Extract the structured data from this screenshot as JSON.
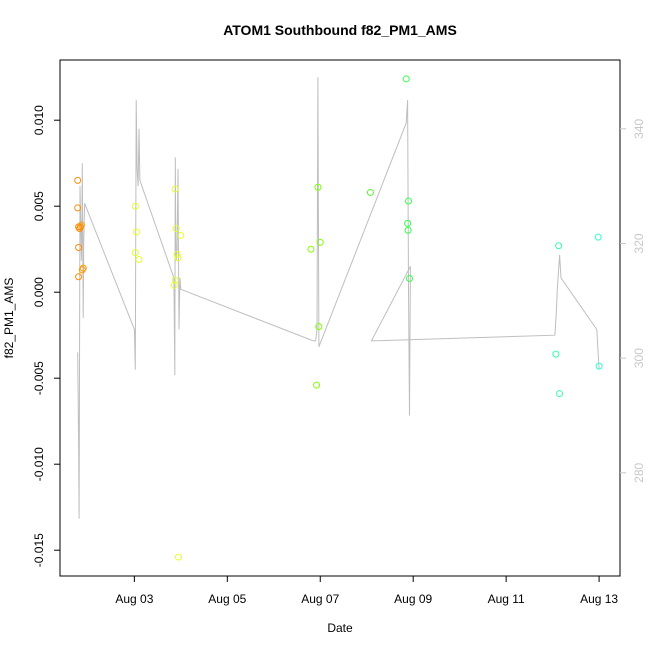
{
  "chart_data": {
    "type": "scatter",
    "title": "ATOM1 Southbound f82_PM1_AMS",
    "xlabel": "Date",
    "ylabel": "f82_PM1_AMS",
    "y2label": "",
    "x_ticks": [
      "Aug 03",
      "Aug 05",
      "Aug 07",
      "Aug 09",
      "Aug 11",
      "Aug 13"
    ],
    "x_tick_values": [
      3,
      5,
      7,
      9,
      11,
      13
    ],
    "xlim": [
      1.4,
      13.45
    ],
    "y_ticks": [
      -0.015,
      -0.01,
      -0.005,
      0.0,
      0.005,
      0.01
    ],
    "y_tick_labels": [
      "-0.015",
      "-0.010",
      "-0.005",
      "0.000",
      "0.005",
      "0.010"
    ],
    "ylim": [
      -0.0165,
      0.0135
    ],
    "y2_ticks": [
      280,
      300,
      320,
      340
    ],
    "y2lim": [
      262,
      352
    ],
    "colors": {
      "axis": "#000000",
      "secondary_axis": "#c8c8c8",
      "line": "#bebebe"
    },
    "points": [
      {
        "x": 1.78,
        "y": 0.0065,
        "color": "#ff8c00"
      },
      {
        "x": 1.78,
        "y": 0.0049,
        "color": "#ff8c00"
      },
      {
        "x": 1.8,
        "y": 0.0038,
        "color": "#ff8c00"
      },
      {
        "x": 1.82,
        "y": 0.0037,
        "color": "#ff8c00"
      },
      {
        "x": 1.84,
        "y": 0.0038,
        "color": "#ff8c00"
      },
      {
        "x": 1.86,
        "y": 0.0039,
        "color": "#ff9a00"
      },
      {
        "x": 1.8,
        "y": 0.0026,
        "color": "#ff8c00"
      },
      {
        "x": 1.9,
        "y": 0.0014,
        "color": "#ff9a00"
      },
      {
        "x": 1.88,
        "y": 0.0013,
        "color": "#ff9a00"
      },
      {
        "x": 1.8,
        "y": 0.0009,
        "color": "#ff8c00"
      },
      {
        "x": 3.02,
        "y": 0.005,
        "color": "#e5ff26"
      },
      {
        "x": 3.05,
        "y": 0.0035,
        "color": "#e5ff26"
      },
      {
        "x": 3.02,
        "y": 0.0023,
        "color": "#e5ff26"
      },
      {
        "x": 3.1,
        "y": 0.0019,
        "color": "#e5ff26"
      },
      {
        "x": 3.88,
        "y": 0.006,
        "color": "#e5ff26"
      },
      {
        "x": 3.9,
        "y": 0.0037,
        "color": "#e5ff26"
      },
      {
        "x": 3.92,
        "y": 0.0022,
        "color": "#e5ff26"
      },
      {
        "x": 3.94,
        "y": 0.002,
        "color": "#e5ff26"
      },
      {
        "x": 4.0,
        "y": 0.0033,
        "color": "#e5ff26"
      },
      {
        "x": 3.88,
        "y": 0.0007,
        "color": "#e5ff26"
      },
      {
        "x": 3.86,
        "y": 0.0004,
        "color": "#e5ff26"
      },
      {
        "x": 3.95,
        "y": -0.0154,
        "color": "#e5ff26"
      },
      {
        "x": 6.8,
        "y": 0.0025,
        "color": "#7fff00"
      },
      {
        "x": 6.95,
        "y": 0.0061,
        "color": "#7fff00"
      },
      {
        "x": 7.0,
        "y": 0.0029,
        "color": "#7fff00"
      },
      {
        "x": 6.97,
        "y": -0.002,
        "color": "#7fff00"
      },
      {
        "x": 6.92,
        "y": -0.0054,
        "color": "#7fff00"
      },
      {
        "x": 8.08,
        "y": 0.0058,
        "color": "#4eff2a"
      },
      {
        "x": 8.85,
        "y": 0.0124,
        "color": "#33ff4d"
      },
      {
        "x": 8.9,
        "y": 0.0053,
        "color": "#33ff4d"
      },
      {
        "x": 8.88,
        "y": 0.004,
        "color": "#33ff4d"
      },
      {
        "x": 8.89,
        "y": 0.0036,
        "color": "#33ff4d"
      },
      {
        "x": 8.92,
        "y": 0.0008,
        "color": "#33ff4d"
      },
      {
        "x": 12.13,
        "y": 0.0027,
        "color": "#33ffaa"
      },
      {
        "x": 12.07,
        "y": -0.0036,
        "color": "#33ffaa"
      },
      {
        "x": 12.15,
        "y": -0.0059,
        "color": "#33ffaa"
      },
      {
        "x": 12.98,
        "y": 0.0032,
        "color": "#33ffcc"
      },
      {
        "x": 13.0,
        "y": -0.0043,
        "color": "#33ffcc"
      }
    ],
    "line_y2": [
      [
        1.78,
        301
      ],
      [
        1.8,
        285
      ],
      [
        1.81,
        272
      ],
      [
        1.83,
        330
      ],
      [
        1.86,
        317
      ],
      [
        1.87,
        321
      ],
      [
        1.88,
        334
      ],
      [
        1.9,
        307
      ],
      [
        1.91,
        320
      ],
      [
        1.93,
        327
      ],
      [
        3.0,
        305
      ],
      [
        3.02,
        298
      ],
      [
        3.04,
        345
      ],
      [
        3.06,
        333
      ],
      [
        3.08,
        330
      ],
      [
        3.1,
        340
      ],
      [
        3.12,
        331
      ],
      [
        3.85,
        314
      ],
      [
        3.87,
        297
      ],
      [
        3.88,
        335
      ],
      [
        3.89,
        323
      ],
      [
        3.9,
        317
      ],
      [
        3.92,
        319
      ],
      [
        3.94,
        333
      ],
      [
        3.96,
        305
      ],
      [
        3.98,
        314
      ],
      [
        4.0,
        312
      ],
      [
        6.85,
        303
      ],
      [
        6.9,
        303
      ],
      [
        6.93,
        305
      ],
      [
        6.95,
        349
      ],
      [
        6.97,
        302
      ],
      [
        8.85,
        341
      ],
      [
        8.88,
        345
      ],
      [
        8.9,
        312
      ],
      [
        8.92,
        290
      ],
      [
        8.94,
        316
      ],
      [
        8.1,
        303
      ],
      [
        12.05,
        304
      ],
      [
        12.08,
        308
      ],
      [
        12.1,
        312
      ],
      [
        12.15,
        318
      ],
      [
        12.18,
        314
      ],
      [
        12.95,
        305
      ],
      [
        13.0,
        298
      ]
    ]
  }
}
